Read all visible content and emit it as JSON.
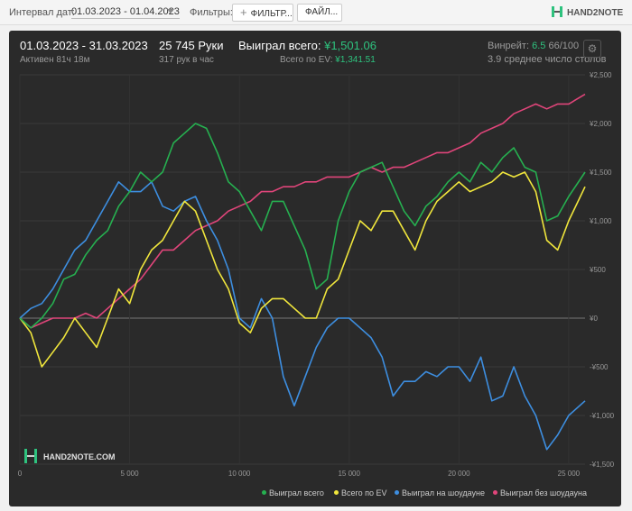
{
  "toolbar": {
    "date_label": "Интервал дат:",
    "date_range": "01.03.2023 - 01.04.2023",
    "filters_label": "Фильтры:",
    "filter_button": "ФИЛЬТР...",
    "file_button": "ФАЙЛ...",
    "logo": "HAND2NOTE"
  },
  "summary": {
    "period": "01.03.2023 - 31.03.2023",
    "active": "Активен 81ч 18м",
    "hands": "25 745 Руки",
    "hands_per_hour": "317 рук в час",
    "won_label": "Выиграл всего:",
    "won_value": "¥1,501.06",
    "ev_label": "Всего по EV:",
    "ev_value": "¥1,341.51",
    "winrate_label": "Винрейт:",
    "winrate_value": "6.5",
    "winrate_suffix": "66/100",
    "tables": "3.9 среднее число столов"
  },
  "watermark": "HAND2NOTE.COM",
  "colors": {
    "won": "#26b050",
    "ev": "#f0e63c",
    "showdown": "#3d8ee0",
    "non_showdown": "#e0457a",
    "panel": "#2a2a2a"
  },
  "chart_data": {
    "type": "line",
    "xlim": [
      0,
      25745
    ],
    "ylim": [
      -1500,
      2500
    ],
    "x_ticks": [
      0,
      5000,
      10000,
      15000,
      20000,
      25000
    ],
    "x_tick_labels": [
      "0",
      "5 000",
      "10 000",
      "15 000",
      "20 000",
      "25 000"
    ],
    "y_ticks": [
      2500,
      2000,
      1500,
      1000,
      500,
      0,
      -500,
      -1000,
      -1500
    ],
    "y_tick_labels": [
      "¥2,500",
      "¥2,000",
      "¥1,500",
      "¥1,000",
      "¥500",
      "¥0",
      "-¥500",
      "-¥1,000",
      "-¥1,500"
    ],
    "grid": true,
    "legend": "bottom-right",
    "series": [
      {
        "name": "Выиграл всего",
        "color": "#26b050",
        "x": [
          0,
          500,
          1000,
          1500,
          2000,
          2500,
          3000,
          3500,
          4000,
          4500,
          5000,
          5500,
          6000,
          6500,
          7000,
          7500,
          8000,
          8500,
          9000,
          9500,
          10000,
          10500,
          11000,
          11500,
          12000,
          12500,
          13000,
          13500,
          14000,
          14500,
          15000,
          15500,
          16000,
          16500,
          17000,
          17500,
          18000,
          18500,
          19000,
          19500,
          20000,
          20500,
          21000,
          21500,
          22000,
          22500,
          23000,
          23500,
          24000,
          24500,
          25000,
          25745
        ],
        "y": [
          0,
          -100,
          0,
          150,
          400,
          450,
          650,
          800,
          900,
          1150,
          1300,
          1500,
          1400,
          1500,
          1800,
          1900,
          2000,
          1950,
          1700,
          1400,
          1300,
          1100,
          900,
          1200,
          1200,
          950,
          700,
          300,
          400,
          1000,
          1300,
          1500,
          1550,
          1600,
          1350,
          1100,
          950,
          1150,
          1250,
          1400,
          1500,
          1400,
          1600,
          1500,
          1650,
          1750,
          1550,
          1500,
          1000,
          1050,
          1250,
          1500
        ]
      },
      {
        "name": "Всего по EV",
        "color": "#f0e63c",
        "x": [
          0,
          500,
          1000,
          1500,
          2000,
          2500,
          3000,
          3500,
          4000,
          4500,
          5000,
          5500,
          6000,
          6500,
          7000,
          7500,
          8000,
          8500,
          9000,
          9500,
          10000,
          10500,
          11000,
          11500,
          12000,
          12500,
          13000,
          13500,
          14000,
          14500,
          15000,
          15500,
          16000,
          16500,
          17000,
          17500,
          18000,
          18500,
          19000,
          19500,
          20000,
          20500,
          21000,
          21500,
          22000,
          22500,
          23000,
          23500,
          24000,
          24500,
          25000,
          25745
        ],
        "y": [
          0,
          -150,
          -500,
          -350,
          -200,
          0,
          -150,
          -300,
          0,
          300,
          150,
          500,
          700,
          800,
          1000,
          1200,
          1100,
          800,
          500,
          300,
          -50,
          -150,
          100,
          200,
          200,
          100,
          0,
          0,
          300,
          400,
          700,
          1000,
          900,
          1100,
          1100,
          900,
          700,
          1000,
          1200,
          1300,
          1400,
          1300,
          1350,
          1400,
          1500,
          1450,
          1500,
          1300,
          800,
          700,
          1000,
          1350
        ]
      },
      {
        "name": "Выиграл на шоудауне",
        "color": "#3d8ee0",
        "x": [
          0,
          500,
          1000,
          1500,
          2000,
          2500,
          3000,
          3500,
          4000,
          4500,
          5000,
          5500,
          6000,
          6500,
          7000,
          7500,
          8000,
          8500,
          9000,
          9500,
          10000,
          10500,
          11000,
          11500,
          12000,
          12500,
          13000,
          13500,
          14000,
          14500,
          15000,
          15500,
          16000,
          16500,
          17000,
          17500,
          18000,
          18500,
          19000,
          19500,
          20000,
          20500,
          21000,
          21500,
          22000,
          22500,
          23000,
          23500,
          24000,
          24500,
          25000,
          25745
        ],
        "y": [
          0,
          100,
          150,
          300,
          500,
          700,
          800,
          1000,
          1200,
          1400,
          1300,
          1300,
          1400,
          1150,
          1100,
          1200,
          1250,
          1000,
          800,
          500,
          0,
          -100,
          200,
          0,
          -600,
          -900,
          -600,
          -300,
          -100,
          0,
          0,
          -100,
          -200,
          -400,
          -800,
          -650,
          -650,
          -550,
          -600,
          -500,
          -500,
          -650,
          -400,
          -850,
          -800,
          -500,
          -800,
          -1000,
          -1350,
          -1200,
          -1000,
          -850
        ]
      },
      {
        "name": "Выиграл без шоудауна",
        "color": "#e0457a",
        "x": [
          0,
          500,
          1000,
          1500,
          2000,
          2500,
          3000,
          3500,
          4000,
          4500,
          5000,
          5500,
          6000,
          6500,
          7000,
          7500,
          8000,
          8500,
          9000,
          9500,
          10000,
          10500,
          11000,
          11500,
          12000,
          12500,
          13000,
          13500,
          14000,
          14500,
          15000,
          15500,
          16000,
          16500,
          17000,
          17500,
          18000,
          18500,
          19000,
          19500,
          20000,
          20500,
          21000,
          21500,
          22000,
          22500,
          23000,
          23500,
          24000,
          24500,
          25000,
          25745
        ],
        "y": [
          0,
          -100,
          -50,
          0,
          0,
          0,
          50,
          0,
          100,
          200,
          300,
          400,
          550,
          700,
          700,
          800,
          900,
          950,
          1000,
          1100,
          1150,
          1200,
          1300,
          1300,
          1350,
          1350,
          1400,
          1400,
          1450,
          1450,
          1450,
          1500,
          1550,
          1500,
          1550,
          1550,
          1600,
          1650,
          1700,
          1700,
          1750,
          1800,
          1900,
          1950,
          2000,
          2100,
          2150,
          2200,
          2150,
          2200,
          2200,
          2300
        ]
      }
    ]
  }
}
